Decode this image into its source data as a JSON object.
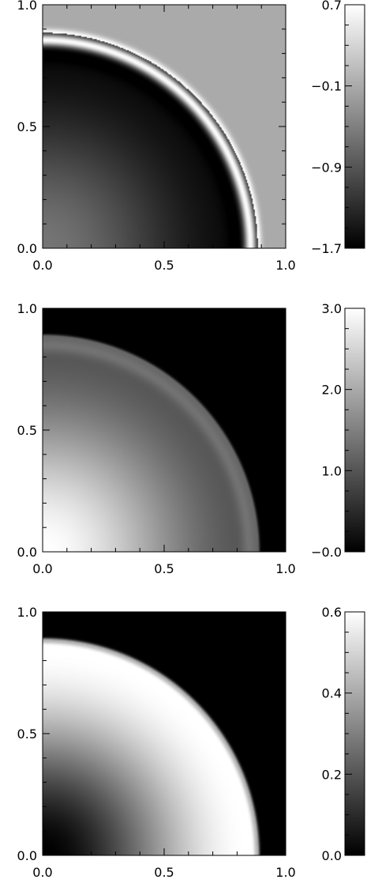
{
  "chart_data": [
    {
      "type": "heatmap",
      "x_ticks": [
        "0.0",
        "0.5",
        "1.0"
      ],
      "y_ticks": [
        "0.0",
        "0.5",
        "1.0"
      ],
      "xlim": [
        0.0,
        1.0
      ],
      "ylim": [
        0.0,
        1.0
      ],
      "grid": false,
      "colorbar": {
        "ticks": [
          "0.7",
          "−0.1",
          "−0.9",
          "−1.7"
        ],
        "range": [
          -1.7,
          0.7
        ]
      },
      "field": {
        "shell_radius": 0.885,
        "background_value": -0.1,
        "shell_peak_value": 0.7,
        "inner_dark_value": -1.6,
        "center_value": -0.6
      }
    },
    {
      "type": "heatmap",
      "x_ticks": [
        "0.0",
        "0.5",
        "1.0"
      ],
      "y_ticks": [
        "0.0",
        "0.5",
        "1.0"
      ],
      "xlim": [
        0.0,
        1.0
      ],
      "ylim": [
        0.0,
        1.0
      ],
      "grid": false,
      "colorbar": {
        "ticks": [
          "3.0",
          "2.0",
          "1.0",
          "−0.0"
        ],
        "range": [
          0.0,
          3.0
        ]
      },
      "field": {
        "shell_radius": 0.885,
        "background_value": 0.0,
        "center_value": 3.0,
        "shell_value": 1.3
      }
    },
    {
      "type": "heatmap",
      "x_ticks": [
        "0.0",
        "0.5",
        "1.0"
      ],
      "y_ticks": [
        "0.0",
        "0.5",
        "1.0"
      ],
      "xlim": [
        0.0,
        1.0
      ],
      "ylim": [
        0.0,
        1.0
      ],
      "grid": false,
      "colorbar": {
        "ticks": [
          "0.6",
          "0.4",
          "0.2",
          "0.0"
        ],
        "range": [
          0.0,
          0.6
        ]
      },
      "field": {
        "shell_radius": 0.885,
        "background_value": 0.0,
        "center_value": 0.0,
        "peak_value": 0.6
      }
    }
  ]
}
